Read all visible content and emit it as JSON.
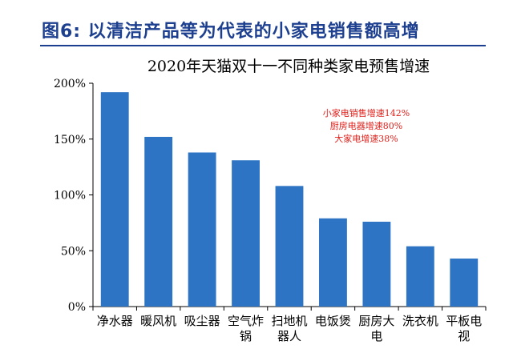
{
  "figure": {
    "title": "图6:  以清洁产品等为代表的小家电销售额高增",
    "title_color": "#1d3f8f"
  },
  "chart_data": {
    "type": "bar",
    "title": "2020年天猫双十一不同种类家电预售增速",
    "categories": [
      "净水器",
      "暖风机",
      "吸尘器",
      "空气炸锅",
      "扫地机器人",
      "电饭煲",
      "厨房大电",
      "洗衣机",
      "平板电视"
    ],
    "category_label_lines": [
      [
        "净水器"
      ],
      [
        "暖风机"
      ],
      [
        "吸尘器"
      ],
      [
        "空气炸",
        "锅"
      ],
      [
        "扫地机",
        "器人"
      ],
      [
        "电饭煲"
      ],
      [
        "厨房大",
        "电"
      ],
      [
        "洗衣机"
      ],
      [
        "平板电",
        "视"
      ]
    ],
    "series": [
      {
        "values": [
          192,
          152,
          138,
          131,
          108,
          79,
          76,
          54,
          43
        ],
        "color": "#2e74c4"
      }
    ],
    "xlabel": "",
    "ylabel": "",
    "ylim": [
      0,
      200
    ],
    "yticks": [
      0,
      50,
      100,
      150,
      200
    ],
    "ytick_labels": [
      "0%",
      "50%",
      "100%",
      "150%",
      "200%"
    ],
    "grid": false,
    "annotations": [
      "小家电销售增速142%",
      "厨房电器增速80%",
      "大家电增速38%"
    ],
    "annotation_color": "#e0201b"
  }
}
